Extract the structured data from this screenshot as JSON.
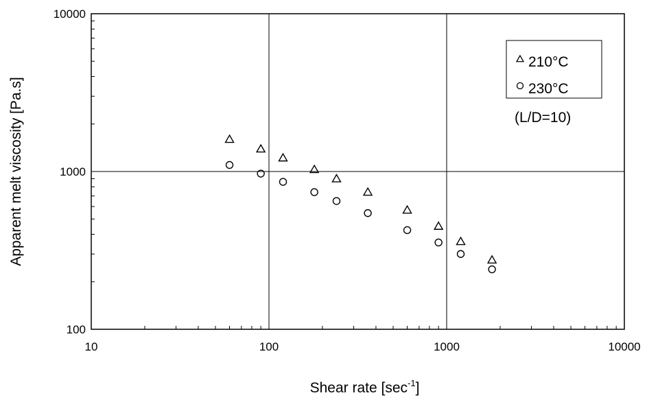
{
  "chart_data": {
    "type": "scatter",
    "title": "",
    "xlabel": "Shear rate [sec",
    "xlabel_superscript": "-1",
    "xlabel_suffix": "]",
    "ylabel": "Apparent melt viscosity [Pa.s]",
    "x_scale": "log",
    "y_scale": "log",
    "xlim": [
      10,
      10000
    ],
    "ylim": [
      100,
      10000
    ],
    "x_ticks": [
      "10",
      "100",
      "1000",
      "10000"
    ],
    "y_ticks": [
      "100",
      "1000",
      "10000"
    ],
    "grid": "major",
    "legend_position": "top-right",
    "series": [
      {
        "name": "210°C",
        "marker": "triangle",
        "color": "#000000",
        "x": [
          60,
          90,
          120,
          180,
          240,
          360,
          600,
          900,
          1200,
          1800
        ],
        "y": [
          1600,
          1390,
          1220,
          1030,
          900,
          740,
          570,
          450,
          360,
          275
        ]
      },
      {
        "name": "230°C",
        "marker": "circle",
        "color": "#000000",
        "x": [
          60,
          90,
          120,
          180,
          240,
          360,
          600,
          900,
          1200,
          1800
        ],
        "y": [
          1100,
          970,
          860,
          740,
          650,
          545,
          425,
          355,
          300,
          240
        ]
      }
    ],
    "annotation": "(L/D=10)"
  }
}
